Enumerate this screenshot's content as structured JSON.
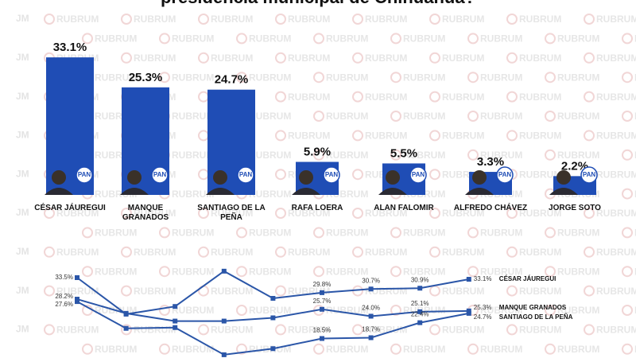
{
  "title": "presidencia municipal de Chihuahua?",
  "watermark": "RUBRUM",
  "watermark_mark": "JM",
  "chart_data": [
    {
      "type": "bar",
      "categories": [
        "CÉSAR JÁUREGUI",
        "MANQUE GRANADOS",
        "SANTIAGO DE LA PEÑA",
        "RAFA LOERA",
        "ALAN FALOMIR",
        "ALFREDO CHÁVEZ",
        "JORGE SOTO"
      ],
      "values": [
        33.1,
        25.3,
        24.7,
        5.9,
        5.5,
        3.3,
        2.2
      ],
      "value_labels": [
        "33.1%",
        "25.3%",
        "24.7%",
        "5.9%",
        "5.5%",
        "3.3%",
        "2.2%"
      ],
      "logo_text": "PAN",
      "color": "#1f4db5"
    },
    {
      "type": "line",
      "categories": [
        null,
        null,
        null,
        null,
        null,
        null,
        null,
        null,
        null
      ],
      "series": [
        {
          "name": "CÉSAR JÁUREGUI",
          "color": "#2b56a8",
          "values": [
            33.5,
            24.5,
            26.4,
            35.1,
            28.4,
            29.8,
            30.7,
            30.9,
            33.1
          ],
          "value_labels": [
            "33.5%",
            null,
            null,
            null,
            null,
            "29.8%",
            "30.7%",
            "30.9%",
            "33.1%"
          ]
        },
        {
          "name": "MANQUE GRANADOS",
          "color": "#2b56a8",
          "values": [
            28.2,
            24.7,
            22.8,
            22.8,
            23.6,
            25.7,
            24.0,
            25.1,
            25.3
          ],
          "value_labels": [
            "28.2%",
            null,
            null,
            null,
            null,
            "25.7%",
            "24.0%",
            "25.1%",
            "25.3%"
          ]
        },
        {
          "name": "SANTIAGO DE LA PEÑA",
          "color": "#2b56a8",
          "values": [
            27.6,
            21.0,
            21.2,
            14.5,
            16.0,
            18.5,
            18.7,
            22.4,
            24.7
          ],
          "value_labels": [
            "27.6%",
            null,
            null,
            null,
            null,
            "18.5%",
            "18.7%",
            "22.4%",
            "24.7%"
          ]
        }
      ]
    }
  ]
}
